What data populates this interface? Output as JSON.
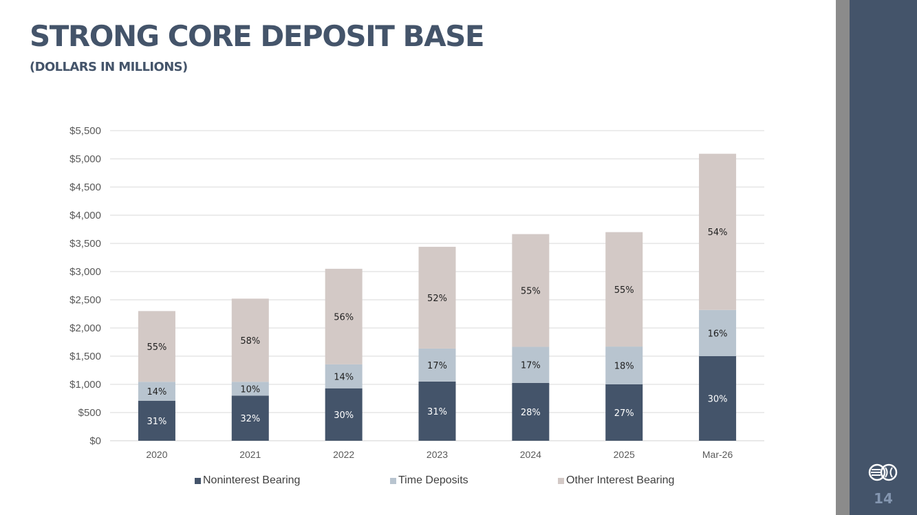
{
  "header": {
    "title": "STRONG CORE DEPOSIT BASE",
    "subtitle": "(DOLLARS IN MILLIONS)"
  },
  "footer": {
    "page_number": "14",
    "logo_icon": "bank-logo-icon"
  },
  "colors": {
    "noninterest": "#44546a",
    "time_deposits": "#b8c4cf",
    "other_interest": "#d3c9c6",
    "sidebar": "#44546a"
  },
  "chart_data": {
    "type": "bar",
    "stacked": true,
    "title": "",
    "xlabel": "",
    "ylabel": "",
    "categories": [
      "2020",
      "2021",
      "2022",
      "2023",
      "2024",
      "2025",
      "Mar-26"
    ],
    "ylim": [
      0,
      5500
    ],
    "yticks": [
      0,
      500,
      1000,
      1500,
      2000,
      2500,
      3000,
      3500,
      4000,
      4500,
      5000,
      5500
    ],
    "ytick_labels": [
      "$0",
      "$500",
      "$1,000",
      "$1,500",
      "$2,000",
      "$2,500",
      "$3,000",
      "$3,500",
      "$4,000",
      "$4,500",
      "$5,000",
      "$5,500"
    ],
    "grid": true,
    "legend_position": "bottom",
    "series": [
      {
        "name": "Noninterest Bearing",
        "values": [
          710,
          800,
          930,
          1050,
          1025,
          1000,
          1500
        ],
        "labels": [
          "31%",
          "32%",
          "30%",
          "31%",
          "28%",
          "27%",
          "30%"
        ]
      },
      {
        "name": "Time Deposits",
        "values": [
          335,
          245,
          425,
          585,
          640,
          670,
          820
        ],
        "labels": [
          "14%",
          "10%",
          "14%",
          "17%",
          "17%",
          "18%",
          "16%"
        ]
      },
      {
        "name": "Other Interest Bearing",
        "values": [
          1255,
          1475,
          1695,
          1805,
          2000,
          2030,
          2770
        ],
        "labels": [
          "55%",
          "58%",
          "56%",
          "52%",
          "55%",
          "55%",
          "54%"
        ]
      }
    ]
  }
}
